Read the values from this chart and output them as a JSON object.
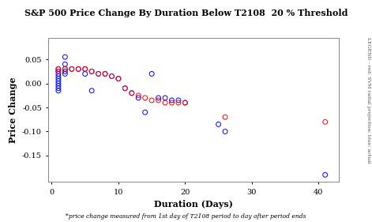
{
  "title": "S&P 500 Price Change By Duration Below T2108  20 % Threshold",
  "xlabel": "Duration (Days)",
  "ylabel": "Price Change",
  "footnote": "*price change measured from 1st day of T2108 period to day after period ends",
  "right_label": "LEGEND - red: SVM radial projection; blue: actual",
  "blue_x": [
    1,
    1,
    1,
    1,
    1,
    1,
    1,
    1,
    1,
    1,
    2,
    2,
    2,
    2,
    2,
    3,
    4,
    5,
    5,
    6,
    6,
    7,
    8,
    9,
    10,
    11,
    12,
    13,
    14,
    15,
    16,
    17,
    18,
    19,
    20,
    25,
    26,
    41
  ],
  "blue_y": [
    0.03,
    0.025,
    0.02,
    0.015,
    0.01,
    0.005,
    0.0,
    -0.005,
    -0.01,
    -0.015,
    0.055,
    0.04,
    0.03,
    0.025,
    0.02,
    0.03,
    0.03,
    0.03,
    0.02,
    0.025,
    -0.015,
    0.02,
    0.02,
    0.015,
    0.01,
    -0.01,
    -0.02,
    -0.03,
    -0.06,
    0.02,
    -0.03,
    -0.03,
    -0.035,
    -0.035,
    -0.04,
    -0.085,
    -0.1,
    -0.19
  ],
  "red_x": [
    1,
    1,
    2,
    3,
    4,
    5,
    6,
    7,
    8,
    9,
    10,
    11,
    12,
    13,
    14,
    15,
    16,
    17,
    18,
    19,
    20,
    26,
    41
  ],
  "red_y": [
    0.03,
    0.025,
    0.03,
    0.03,
    0.03,
    0.03,
    0.025,
    0.02,
    0.02,
    0.015,
    0.01,
    -0.01,
    -0.02,
    -0.025,
    -0.03,
    -0.035,
    -0.035,
    -0.04,
    -0.04,
    -0.04,
    -0.04,
    -0.07,
    -0.08
  ],
  "xlim": [
    -0.5,
    43
  ],
  "ylim": [
    -0.205,
    0.095
  ],
  "yticks": [
    0.05,
    0.0,
    -0.05,
    -0.1,
    -0.15
  ],
  "ytick_labels": [
    "0.05",
    "0.00",
    "-0.05",
    "-0.10",
    "-0.15"
  ],
  "xticks": [
    0,
    10,
    20,
    30,
    40
  ],
  "bg_color": "#ffffff",
  "marker_size": 18,
  "linewidth": 0.7
}
